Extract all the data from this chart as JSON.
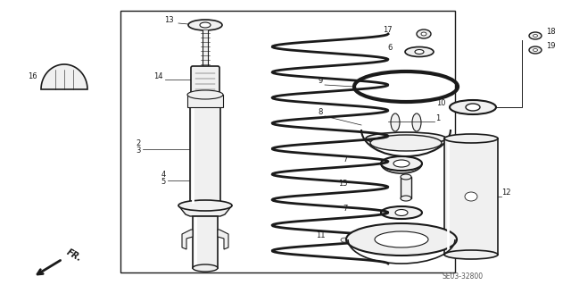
{
  "bg_color": "#ffffff",
  "line_color": "#1a1a1a",
  "part_fill": "#f0f0f0",
  "diagram_code": "SE03-32800"
}
